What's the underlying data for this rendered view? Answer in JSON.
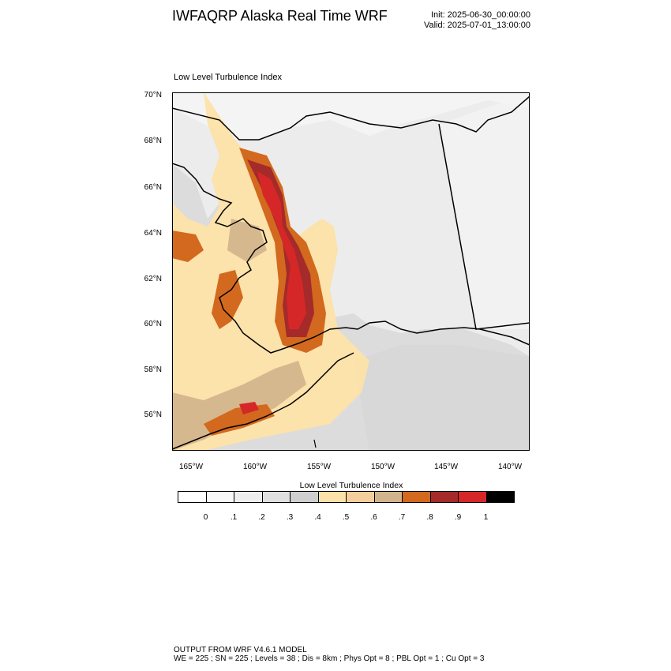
{
  "header": {
    "title": "IWFAQRP Alaska Real Time WRF",
    "init": "Init: 2025-06-30_00:00:00",
    "valid": "Valid: 2025-07-01_13:00:00"
  },
  "map": {
    "title": "Low Level Turbulence Index",
    "lat_labels": [
      "70°N",
      "68°N",
      "66°N",
      "64°N",
      "62°N",
      "60°N",
      "58°N",
      "56°N"
    ],
    "lon_labels": [
      "165°W",
      "160°W",
      "155°W",
      "150°W",
      "145°W",
      "140°W"
    ],
    "background_color": "#dcdcdc",
    "land_color": "#ececec",
    "high_turbulence_color": "#d62728"
  },
  "colorbar": {
    "title": "Low Level Turbulence Index",
    "colors": [
      "#ffffff",
      "#f8f8f8",
      "#eeeeee",
      "#e0e0e0",
      "#cfcfcf",
      "#fde1a8",
      "#f4cf9c",
      "#d2b48c",
      "#d2691e",
      "#a52a2a",
      "#d62728",
      "#000000"
    ],
    "tick_labels": [
      "0",
      ".1",
      ".2",
      ".3",
      ".4",
      ".5",
      ".6",
      ".7",
      ".8",
      ".9",
      "1"
    ]
  },
  "footer": {
    "line1": "OUTPUT FROM WRF V4.6.1 MODEL",
    "line2": "WE = 225 ; SN = 225 ; Levels = 38 ; Dis = 8km ; Phys Opt = 8 ; PBL Opt = 1 ; Cu Opt = 3"
  }
}
